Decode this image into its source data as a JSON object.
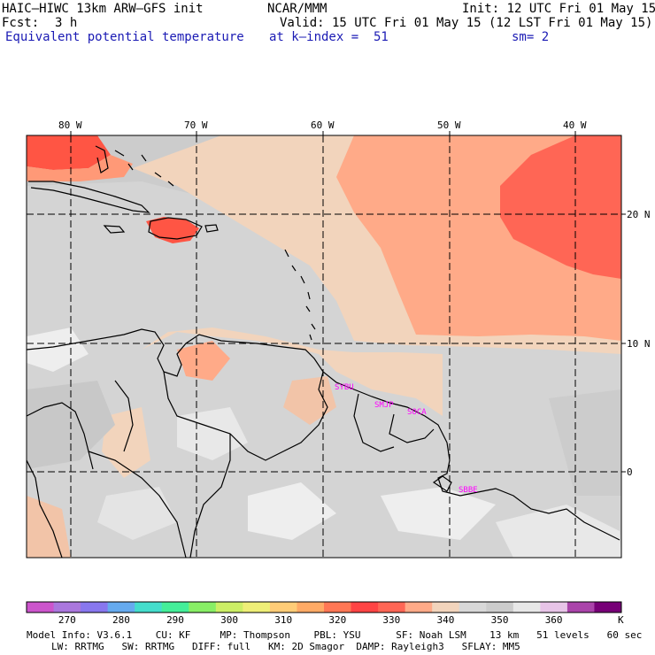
{
  "header": {
    "model_line": "HAIC–HIWC 13km ARW–GFS init",
    "org": "NCAR/MMM",
    "init": "Init: 12 UTC Fri 01 May 15",
    "fcst_label": "Fcst:",
    "fcst_value": "3 h",
    "valid": "Valid: 15 UTC Fri 01 May 15 (12 LST Fri 01 May 15)",
    "field": "Equivalent potential temperature",
    "level": "at k–index =  51",
    "smoothing": "sm= 2"
  },
  "map": {
    "lon_labels": [
      "80 W",
      "70 W",
      "60 W",
      "50 W",
      "40 W"
    ],
    "lat_labels": [
      "20 N",
      "10 N",
      "0"
    ],
    "stations": [
      "SYBU",
      "SMJP",
      "SOCA",
      "SBBE"
    ]
  },
  "colorbar": {
    "colors": [
      "#cc55cc",
      "#aa77dd",
      "#8877ee",
      "#66aaee",
      "#44ddcc",
      "#44ee99",
      "#88ee66",
      "#ccee66",
      "#eeee77",
      "#ffcc77",
      "#ffaa66",
      "#ff7755",
      "#ff4444",
      "#ff6655",
      "#ffaa88",
      "#f2d4bc",
      "#d8d8d8",
      "#cccccc",
      "#e8e8e8",
      "#e8c4e8",
      "#aa44aa",
      "#770077"
    ],
    "tick_labels": [
      "270",
      "280",
      "290",
      "300",
      "310",
      "320",
      "330",
      "340",
      "350",
      "360"
    ],
    "unit": "K"
  },
  "footer": {
    "line1": "Model Info: V3.6.1    CU: KF     MP: Thompson    PBL: YSU      SF: Noah LSM    13 km   51 levels   60 sec",
    "line2": "LW: RRTMG   SW: RRTMG   DIFF: full   KM: 2D Smagor  DAMP: Rayleigh3   SFLAY: MM5"
  }
}
